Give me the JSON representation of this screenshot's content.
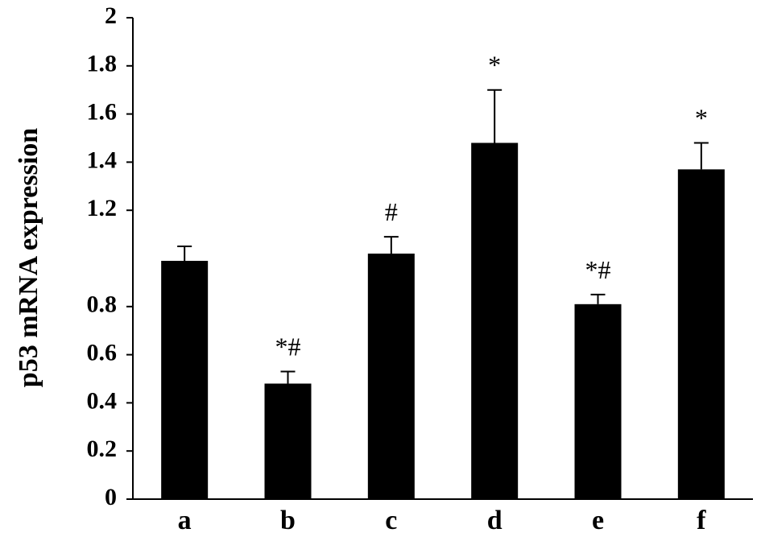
{
  "chart_data": {
    "type": "bar",
    "categories": [
      "a",
      "b",
      "c",
      "d",
      "e",
      "f"
    ],
    "values": [
      0.99,
      0.48,
      1.02,
      1.48,
      0.81,
      1.37
    ],
    "errors": [
      0.06,
      0.05,
      0.07,
      0.22,
      0.04,
      0.11
    ],
    "annotations": [
      "",
      "*#",
      "#",
      "*",
      "*#",
      "*"
    ],
    "ylabel": "p53 mRNA expression",
    "xlabel": "",
    "ylim": [
      0,
      2
    ],
    "yticks": [
      0,
      0.2,
      0.4,
      0.6,
      0.8,
      1.2,
      1.4,
      1.6,
      1.8,
      2
    ],
    "ytick_labels": [
      "0",
      "0.2",
      "0.4",
      "0.6",
      "0.8",
      "1.2",
      "1.4",
      "1.6",
      "1.8",
      "2"
    ],
    "grid": false,
    "bar_color": "#000000"
  }
}
